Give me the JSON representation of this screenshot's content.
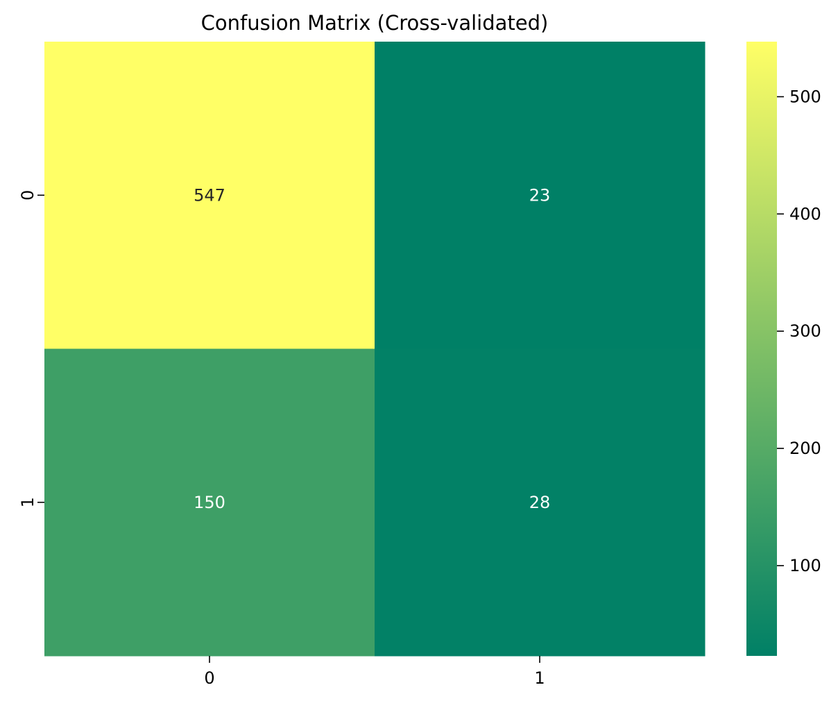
{
  "chart_data": {
    "type": "heatmap",
    "title": "Confusion Matrix (Cross-validated)",
    "xlabel": "",
    "ylabel": "",
    "x_categories": [
      "0",
      "1"
    ],
    "y_categories": [
      "0",
      "1"
    ],
    "values": [
      [
        547,
        23
      ],
      [
        150,
        28
      ]
    ],
    "colormap": "summer",
    "colormap_stops": [
      "#008066",
      "#ffff66"
    ],
    "vmin": 23,
    "vmax": 547,
    "colorbar": {
      "ticks": [
        100,
        200,
        300,
        400,
        500
      ],
      "tick_labels": [
        "100",
        "200",
        "300",
        "400",
        "500"
      ]
    },
    "grid": false,
    "legend": "colorbar-right"
  }
}
